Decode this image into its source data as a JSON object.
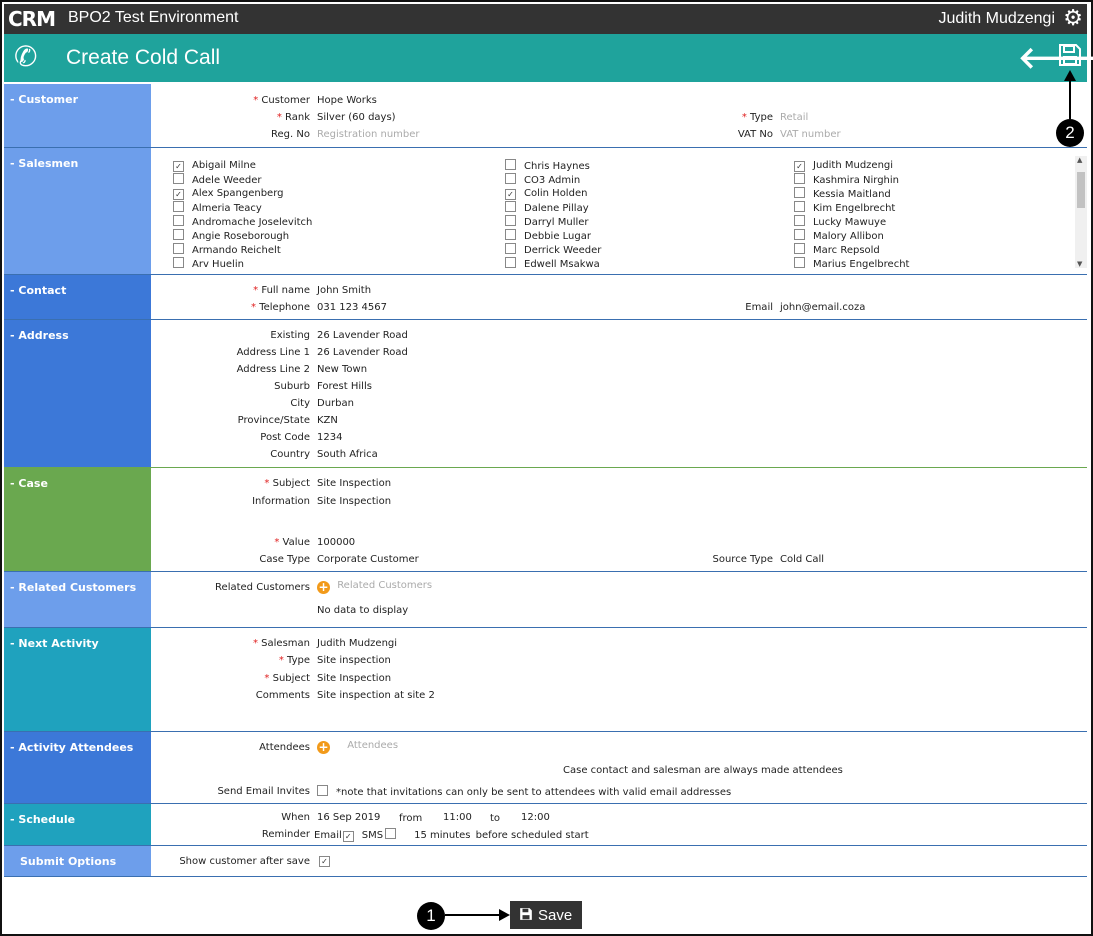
{
  "app": {
    "logo": "CRM",
    "title": "BPO2 Test Environment",
    "user": "Judith Mudzengi"
  },
  "header": {
    "title": "Create Cold Call"
  },
  "customer": {
    "section": "Customer",
    "customer_label": "Customer",
    "customer_value": "Hope Works",
    "rank_label": "Rank",
    "rank_value": "Silver (60 days)",
    "regno_label": "Reg. No",
    "regno_placeholder": "Registration number",
    "type_label": "Type",
    "type_placeholder": "Retail",
    "vat_label": "VAT No",
    "vat_placeholder": "VAT number"
  },
  "salesmen": {
    "section": "Salesmen",
    "col1": [
      {
        "name": "Abigail Milne",
        "checked": true
      },
      {
        "name": "Adele Weeder",
        "checked": false
      },
      {
        "name": "Alex Spangenberg",
        "checked": true
      },
      {
        "name": "Almeria Teacy",
        "checked": false
      },
      {
        "name": "Andromache Joselevitch",
        "checked": false
      },
      {
        "name": "Angie Roseborough",
        "checked": false
      },
      {
        "name": "Armando Reichelt",
        "checked": false
      },
      {
        "name": "Arv Huelin",
        "checked": false
      }
    ],
    "col2": [
      {
        "name": "Chris Haynes",
        "checked": false
      },
      {
        "name": "CO3 Admin",
        "checked": false
      },
      {
        "name": "Colin Holden",
        "checked": true
      },
      {
        "name": "Dalene Pillay",
        "checked": false
      },
      {
        "name": "Darryl Muller",
        "checked": false
      },
      {
        "name": "Debbie Lugar",
        "checked": false
      },
      {
        "name": "Derrick Weeder",
        "checked": false
      },
      {
        "name": "Edwell Msakwa",
        "checked": false
      }
    ],
    "col3": [
      {
        "name": "Judith Mudzengi",
        "checked": true
      },
      {
        "name": "Kashmira Nirghin",
        "checked": false
      },
      {
        "name": "Kessia Maitland",
        "checked": false
      },
      {
        "name": "Kim Engelbrecht",
        "checked": false
      },
      {
        "name": "Lucky Mawuye",
        "checked": false
      },
      {
        "name": "Malory Allibon",
        "checked": false
      },
      {
        "name": "Marc Repsold",
        "checked": false
      },
      {
        "name": "Marius Engelbrecht",
        "checked": false
      }
    ]
  },
  "contact": {
    "section": "Contact",
    "fullname_label": "Full name",
    "fullname_value": "John Smith",
    "phone_label": "Telephone",
    "phone_value": "031 123 4567",
    "email_label": "Email",
    "email_value": "john@email.coza"
  },
  "address": {
    "section": "Address",
    "rows": [
      {
        "label": "Existing",
        "value": "26 Lavender Road"
      },
      {
        "label": "Address Line 1",
        "value": "26 Lavender Road"
      },
      {
        "label": "Address Line 2",
        "value": "New Town"
      },
      {
        "label": "Suburb",
        "value": "Forest Hills"
      },
      {
        "label": "City",
        "value": "Durban"
      },
      {
        "label": "Province/State",
        "value": "KZN"
      },
      {
        "label": "Post Code",
        "value": "1234"
      },
      {
        "label": "Country",
        "value": "South Africa"
      }
    ]
  },
  "case": {
    "section": "Case",
    "subject_label": "Subject",
    "subject_value": "Site Inspection",
    "info_label": "Information",
    "info_value": "Site Inspection",
    "value_label": "Value",
    "value_value": "100000",
    "casetype_label": "Case Type",
    "casetype_value": "Corporate Customer",
    "source_label": "Source Type",
    "source_value": "Cold Call"
  },
  "related": {
    "section": "Related Customers",
    "label": "Related Customers",
    "placeholder": "Related Customers",
    "empty": "No data to display"
  },
  "next_activity": {
    "section": "Next Activity",
    "salesman_label": "Salesman",
    "salesman_value": "Judith Mudzengi",
    "type_label": "Type",
    "type_value": "Site inspection",
    "subject_label": "Subject",
    "subject_value": "Site Inspection",
    "comments_label": "Comments",
    "comments_value": "Site inspection at site 2"
  },
  "attendees": {
    "section": "Activity Attendees",
    "label": "Attendees",
    "placeholder": "Attendees",
    "note": "Case contact and salesman are always made attendees",
    "invite_label": "Send Email Invites",
    "invite_note": "*note that invitations can only be sent to attendees with valid email addresses"
  },
  "schedule": {
    "section": "Schedule",
    "when_label": "When",
    "date": "16 Sep 2019",
    "from_label": "from",
    "from_time": "11:00",
    "to_label": "to",
    "to_time": "12:00",
    "reminder_label": "Reminder",
    "email_label": "Email",
    "sms_label": "SMS",
    "minutes": "15 minutes",
    "before": "before scheduled start"
  },
  "submit": {
    "section": "Submit Options",
    "show_label": "Show customer after save"
  },
  "buttons": {
    "save": "Save"
  },
  "callouts": {
    "one": "1",
    "two": "2"
  },
  "colors": {
    "header": "#1fa39c",
    "topbar": "#333333",
    "customer": "#6d9eeb",
    "salesmen": "#6d9eeb",
    "contact": "#3c78d8",
    "address": "#3c78d8",
    "case": "#6aa84f",
    "related": "#6d9eeb",
    "next_activity": "#1fa2be",
    "attendees": "#3c78d8",
    "schedule": "#1fa2be",
    "submit": "#6d9eeb"
  }
}
